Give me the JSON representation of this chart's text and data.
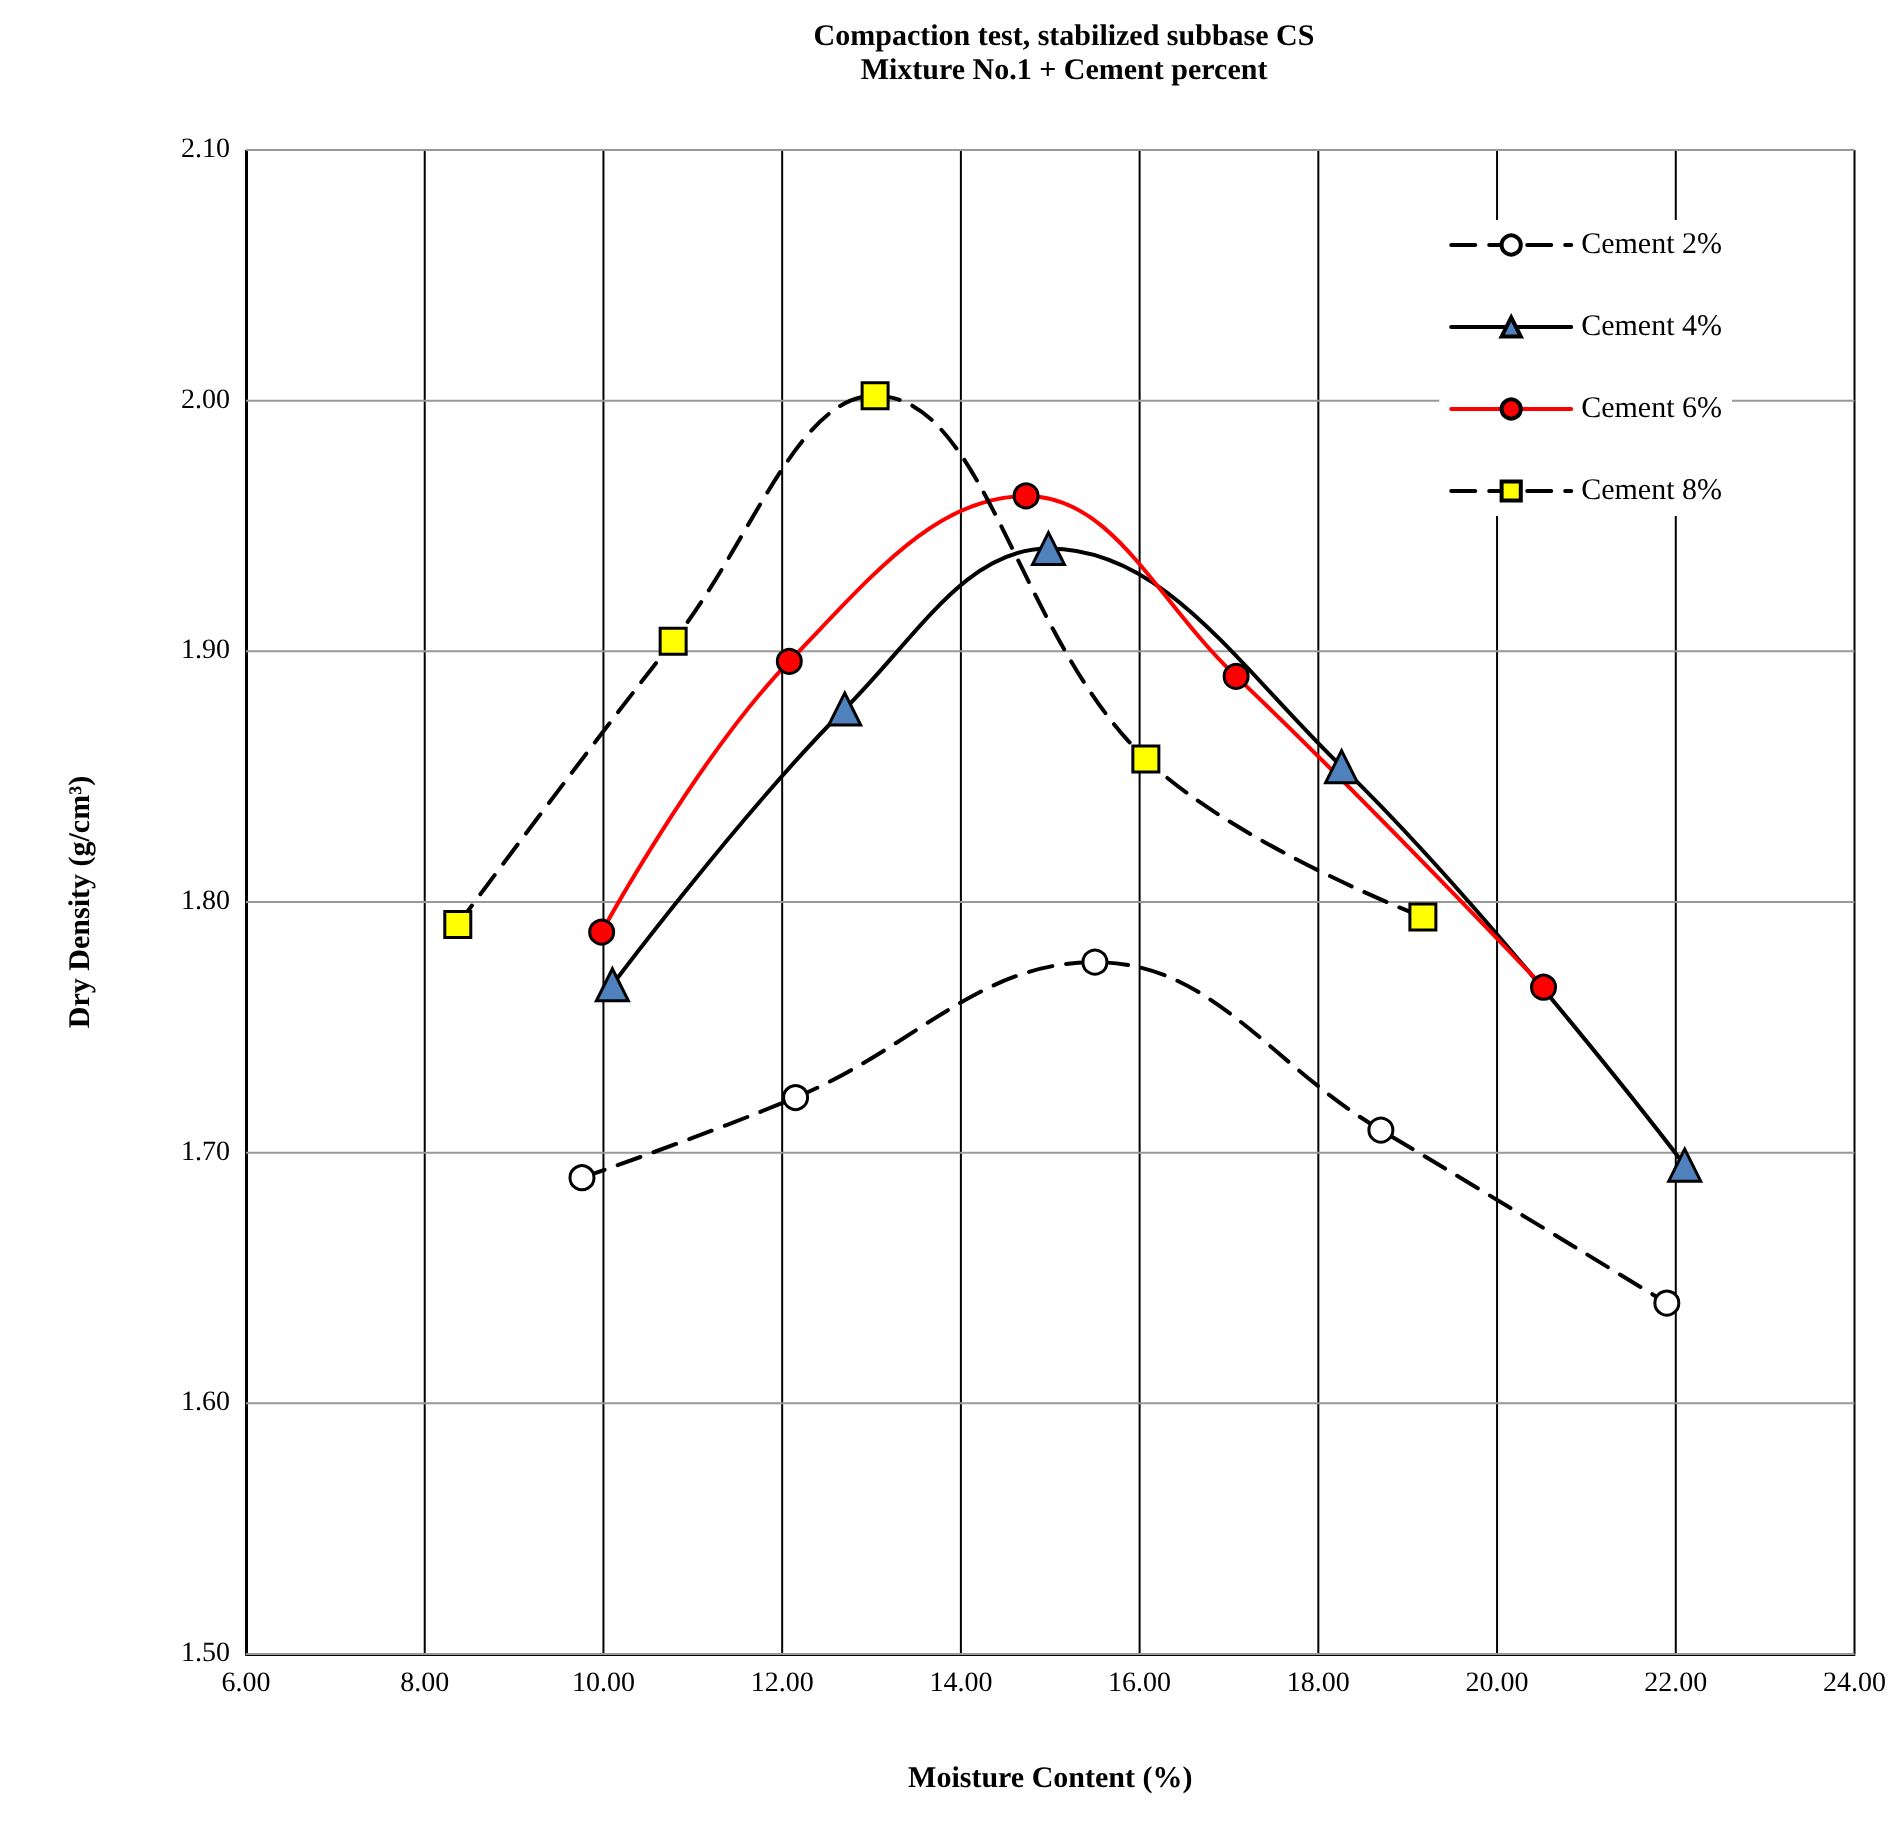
{
  "chart_data": {
    "type": "line",
    "title": "Compaction test, stabilized subbase CS",
    "subtitle": "Mixture No.1 + Cement percent",
    "xlabel": "Moisture Content (%)",
    "ylabel": "Dry Density (g/cm³)",
    "xlim": [
      6,
      24
    ],
    "xticks": [
      {
        "value": 6,
        "label": "6.00"
      },
      {
        "value": 8,
        "label": "8.00"
      },
      {
        "value": 10,
        "label": "10.00"
      },
      {
        "value": 12,
        "label": "12.00"
      },
      {
        "value": 14,
        "label": "14.00"
      },
      {
        "value": 16,
        "label": "16.00"
      },
      {
        "value": 18,
        "label": "18.00"
      },
      {
        "value": 20,
        "label": "20.00"
      },
      {
        "value": 22,
        "label": "22.00"
      },
      {
        "value": 24,
        "label": "24.00"
      }
    ],
    "ylim": [
      1.5,
      2.1
    ],
    "yticks": [
      {
        "value": 1.5,
        "label": "1.50"
      },
      {
        "value": 1.6,
        "label": "1.60"
      },
      {
        "value": 1.7,
        "label": "1.70"
      },
      {
        "value": 1.8,
        "label": "1.80"
      },
      {
        "value": 1.9,
        "label": "1.90"
      },
      {
        "value": 2.0,
        "label": "2.00"
      },
      {
        "value": 2.1,
        "label": "2.10"
      }
    ],
    "grid": true,
    "legend": "top right",
    "series": [
      {
        "name": "Cement 2%",
        "color": "#000000",
        "marker": "circle",
        "line_style": "dashed",
        "x": [
          9.76,
          12.15,
          15.5,
          18.7,
          21.9
        ],
        "values": [
          1.69,
          1.722,
          1.776,
          1.709,
          1.64
        ]
      },
      {
        "name": "Cement 4%",
        "color": "#000000",
        "marker": "triangle",
        "line_style": "solid",
        "x": [
          10.1,
          12.7,
          14.98,
          18.26,
          22.1
        ],
        "values": [
          1.767,
          1.877,
          1.941,
          1.854,
          1.695
        ]
      },
      {
        "name": "Cement 6%",
        "color": "#ff0000",
        "marker": "circle",
        "line_style": "solid",
        "x": [
          9.98,
          12.08,
          14.73,
          17.08,
          20.52
        ],
        "values": [
          1.788,
          1.896,
          1.962,
          1.89,
          1.766
        ]
      },
      {
        "name": "Cement 8%",
        "color": "#000000",
        "marker": "square",
        "line_style": "dashed",
        "x": [
          8.37,
          10.78,
          13.04,
          16.07,
          19.17
        ],
        "values": [
          1.791,
          1.904,
          2.002,
          1.857,
          1.794
        ]
      }
    ]
  }
}
